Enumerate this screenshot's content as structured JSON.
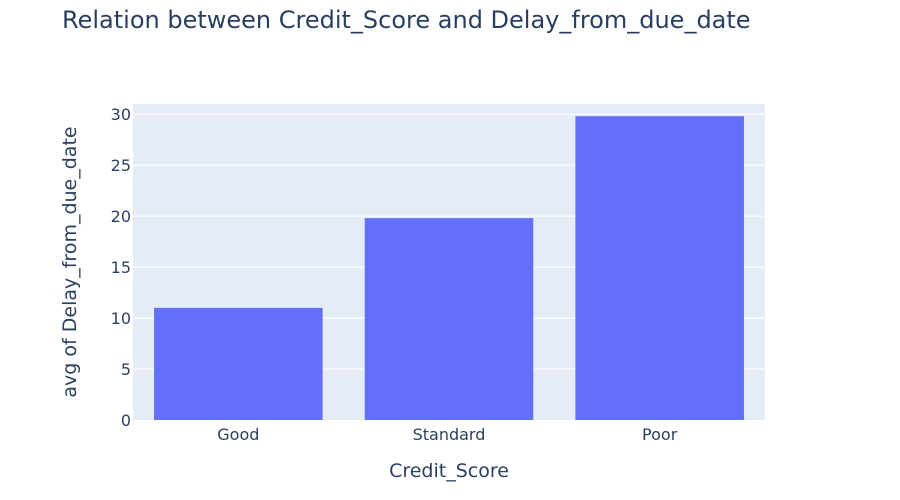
{
  "chart_data": {
    "type": "bar",
    "title": "Relation between Credit_Score and Delay_from_due_date",
    "xlabel": "Credit_Score",
    "ylabel": "avg of Delay_from_due_date",
    "categories": [
      "Good",
      "Standard",
      "Poor"
    ],
    "values": [
      11.0,
      19.8,
      29.8
    ],
    "ylim": [
      0,
      31
    ],
    "yticks": [
      0,
      5,
      10,
      15,
      20,
      25,
      30
    ],
    "grid": true,
    "legend": "none",
    "colors": {
      "bar": "#636efa",
      "plot_background": "#e5ecf6",
      "gridline": "#ffffff",
      "text": "#2a3f5f"
    }
  }
}
